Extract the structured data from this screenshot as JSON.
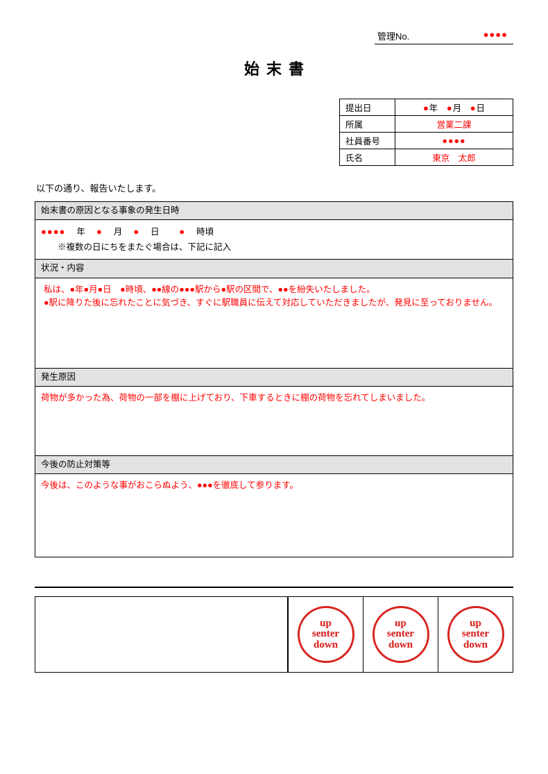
{
  "header": {
    "mgmt_label": "管理No.",
    "mgmt_value": "●●●●",
    "title": "始末書"
  },
  "info": {
    "date_label": "提出日",
    "date_value_html": "●年　●月　●日",
    "dept_label": "所属",
    "dept_value": "営業二課",
    "empno_label": "社員番号",
    "empno_value": "●●●●",
    "name_label": "氏名",
    "name_value": "東京　太郎"
  },
  "intro": "以下の通り、報告いたします。",
  "sections": {
    "s1_header": "始末書の原因となる事象の発生日時",
    "s1_line1_dots": "●●●●",
    "s1_line1_y": "年",
    "s1_line1_m_dot": "●",
    "s1_line1_m": "月",
    "s1_line1_d_dot": "●",
    "s1_line1_d": "日",
    "s1_line1_h_dot": "●",
    "s1_line1_h": "時頃",
    "s1_note": "※複数の日にちをまたぐ場合は、下記に記入",
    "s2_header": "状況・内容",
    "s2_line1": "私は、●年●月●日　●時頃、●●線の●●●駅から●駅の区間で、●●を紛失いたしました。",
    "s2_line2": "●駅に降りた後に忘れたことに気づき、すぐに駅職員に伝えて対応していただきましたが、発見に至っておりません。",
    "s3_header": "発生原因",
    "s3_body": "荷物が多かった為、荷物の一部を棚に上げており、下車するときに棚の荷物を忘れてしまいました。",
    "s4_header": "今後の防止対策等",
    "s4_body": "今後は、このような事がおこらぬよう、●●●を徹底して参ります。"
  },
  "stamp": {
    "line1": "up",
    "line2": "senter",
    "line3": "down"
  },
  "colors": {
    "accent_red": "#ff0000",
    "stamp_red": "#d8241f",
    "header_gray": "#e2e2e2",
    "border": "#000000",
    "background": "#ffffff"
  }
}
